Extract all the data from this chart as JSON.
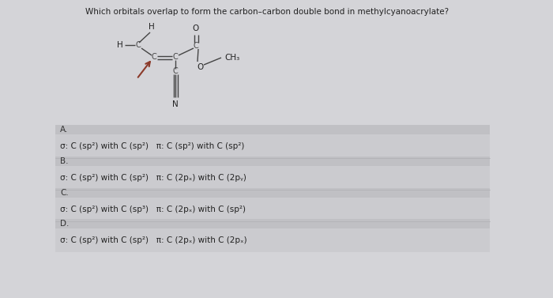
{
  "question": "Which orbitals overlap to form the carbon–carbon double bond in methylcyanoacrylate?",
  "bg_color": "#d4d4d8",
  "answer_label_bg": "#c0c0c4",
  "answer_text_bg": "#cbcbcf",
  "answers": [
    {
      "label": "A.",
      "text": "σ: C (sp²) with C (sp²)   π: C (sp²) with C (sp²)"
    },
    {
      "label": "B.",
      "text": "σ: C (sp²) with C (sp²)   π: C (2pₓ) with C (2pᵧ)"
    },
    {
      "label": "C.",
      "text": "σ: C (sp²) with C (sp³)   π: C (2pₓ) with C (sp²)"
    },
    {
      "label": "D.",
      "text": "σ: C (sp²) with C (sp²)   π: C (2pₓ) with C (2pₓ)"
    }
  ],
  "text_color": "#222222",
  "label_color": "#333333",
  "question_fontsize": 7.5,
  "answer_fontsize": 7.5,
  "label_fontsize": 7.5,
  "struct_color": "#444444",
  "arrow_color": "#8B3A2A"
}
